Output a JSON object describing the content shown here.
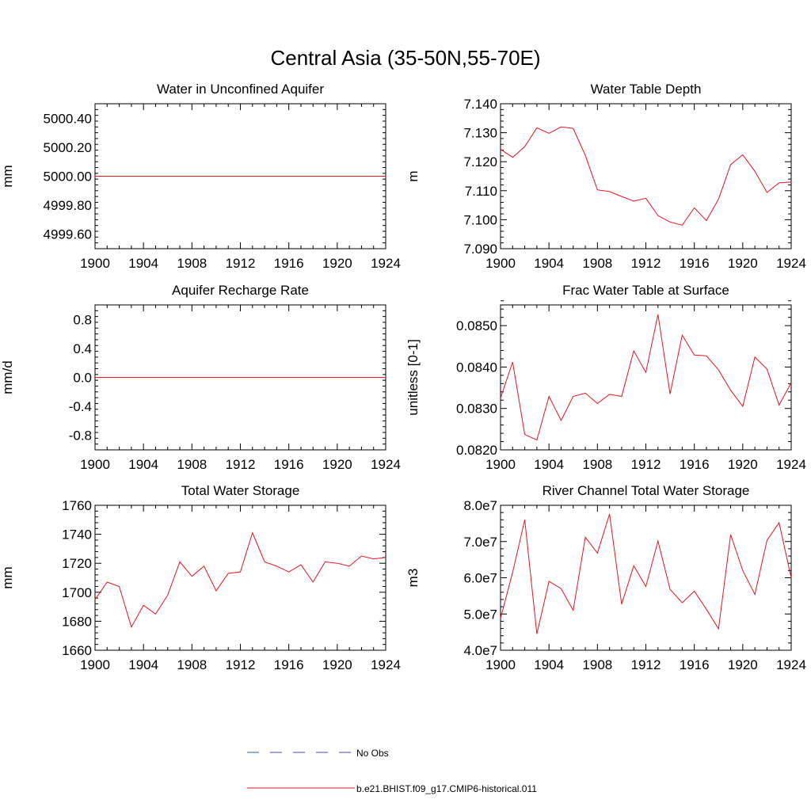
{
  "figure": {
    "title": "Central Asia (35-50N,55-70E)"
  },
  "legend": {
    "entries": [
      {
        "label": "No Obs",
        "style": "dashed",
        "color": "#3b4fd1"
      },
      {
        "label": "b.e21.BHIST.f09_g17.CMIP6-historical.011",
        "style": "solid",
        "color": "#e8141e"
      }
    ]
  },
  "chart_data": [
    {
      "type": "line",
      "title": "Water in Unconfined Aquifer",
      "ylabel": "mm",
      "xlim": [
        1900,
        1924
      ],
      "ylim": [
        4999.5,
        5000.5
      ],
      "xticks": [
        1900,
        1904,
        1908,
        1912,
        1916,
        1920,
        1924
      ],
      "yticks": [
        4999.6,
        4999.8,
        5000.0,
        5000.2,
        5000.4
      ],
      "ytick_labels": [
        "4999.60",
        "4999.80",
        "5000.00",
        "5000.20",
        "5000.40"
      ],
      "series": [
        {
          "name": "b.e21.BHIST.f09_g17.CMIP6-historical.011",
          "color": "#e8141e",
          "x": [
            1900,
            1901,
            1902,
            1903,
            1904,
            1905,
            1906,
            1907,
            1908,
            1909,
            1910,
            1911,
            1912,
            1913,
            1914,
            1915,
            1916,
            1917,
            1918,
            1919,
            1920,
            1921,
            1922,
            1923,
            1924
          ],
          "values": [
            5000,
            5000,
            5000,
            5000,
            5000,
            5000,
            5000,
            5000,
            5000,
            5000,
            5000,
            5000,
            5000,
            5000,
            5000,
            5000,
            5000,
            5000,
            5000,
            5000,
            5000,
            5000,
            5000,
            5000,
            5000
          ]
        }
      ]
    },
    {
      "type": "line",
      "title": "Water Table Depth",
      "ylabel": "m",
      "xlim": [
        1900,
        1924
      ],
      "ylim": [
        7.09,
        7.14
      ],
      "xticks": [
        1900,
        1904,
        1908,
        1912,
        1916,
        1920,
        1924
      ],
      "yticks": [
        7.09,
        7.1,
        7.11,
        7.12,
        7.13,
        7.14
      ],
      "ytick_labels": [
        "7.090",
        "7.100",
        "7.110",
        "7.120",
        "7.130",
        "7.140"
      ],
      "series": [
        {
          "name": "b.e21.BHIST.f09_g17.CMIP6-historical.011",
          "color": "#e8141e",
          "x": [
            1900,
            1901,
            1902,
            1903,
            1904,
            1905,
            1906,
            1907,
            1908,
            1909,
            1910,
            1911,
            1912,
            1913,
            1914,
            1915,
            1916,
            1917,
            1918,
            1919,
            1920,
            1921,
            1922,
            1923,
            1924
          ],
          "values": [
            7.1243,
            7.1215,
            7.1252,
            7.1317,
            7.1298,
            7.132,
            7.1315,
            7.1222,
            7.1103,
            7.1097,
            7.108,
            7.1064,
            7.1074,
            7.1014,
            7.0992,
            7.0981,
            7.1041,
            7.0997,
            7.1071,
            7.119,
            7.1224,
            7.1167,
            7.1094,
            7.1127,
            7.113
          ]
        }
      ]
    },
    {
      "type": "line",
      "title": "Aquifer Recharge Rate",
      "ylabel": "mm/d",
      "xlim": [
        1900,
        1924
      ],
      "ylim": [
        -1.0,
        1.0
      ],
      "xticks": [
        1900,
        1904,
        1908,
        1912,
        1916,
        1920,
        1924
      ],
      "yticks": [
        -0.8,
        -0.4,
        0.0,
        0.4,
        0.8
      ],
      "ytick_labels": [
        "-0.8",
        "-0.4",
        "0.0",
        "0.4",
        "0.8"
      ],
      "series": [
        {
          "name": "b.e21.BHIST.f09_g17.CMIP6-historical.011",
          "color": "#e8141e",
          "x": [
            1900,
            1901,
            1902,
            1903,
            1904,
            1905,
            1906,
            1907,
            1908,
            1909,
            1910,
            1911,
            1912,
            1913,
            1914,
            1915,
            1916,
            1917,
            1918,
            1919,
            1920,
            1921,
            1922,
            1923,
            1924
          ],
          "values": [
            0,
            0,
            0,
            0,
            0,
            0,
            0,
            0,
            0,
            0,
            0,
            0,
            0,
            0,
            0,
            0,
            0,
            0,
            0,
            0,
            0,
            0,
            0,
            0,
            0
          ]
        }
      ]
    },
    {
      "type": "line",
      "title": "Frac Water Table at Surface",
      "ylabel": "unitless [0-1]",
      "xlim": [
        1900,
        1924
      ],
      "ylim": [
        0.082,
        0.0855
      ],
      "xticks": [
        1900,
        1904,
        1908,
        1912,
        1916,
        1920,
        1924
      ],
      "yticks": [
        0.082,
        0.083,
        0.084,
        0.085
      ],
      "ytick_labels": [
        "0.0820",
        "0.0830",
        "0.0840",
        "0.0850"
      ],
      "series": [
        {
          "name": "b.e21.BHIST.f09_g17.CMIP6-historical.011",
          "color": "#e8141e",
          "x": [
            1900,
            1901,
            1902,
            1903,
            1904,
            1905,
            1906,
            1907,
            1908,
            1909,
            1910,
            1911,
            1912,
            1913,
            1914,
            1915,
            1916,
            1917,
            1918,
            1919,
            1920,
            1921,
            1922,
            1923,
            1924
          ],
          "values": [
            0.08325,
            0.08412,
            0.08237,
            0.08224,
            0.08329,
            0.08271,
            0.08329,
            0.08337,
            0.08312,
            0.08334,
            0.08329,
            0.08439,
            0.08387,
            0.08527,
            0.08335,
            0.08477,
            0.08429,
            0.08427,
            0.08393,
            0.08344,
            0.08305,
            0.08424,
            0.08395,
            0.08308,
            0.08362
          ]
        }
      ]
    },
    {
      "type": "line",
      "title": "Total Water Storage",
      "ylabel": "mm",
      "xlim": [
        1900,
        1924
      ],
      "ylim": [
        1660,
        1760
      ],
      "xticks": [
        1900,
        1904,
        1908,
        1912,
        1916,
        1920,
        1924
      ],
      "yticks": [
        1660,
        1680,
        1700,
        1720,
        1740,
        1760
      ],
      "ytick_labels": [
        "1660",
        "1680",
        "1700",
        "1720",
        "1740",
        "1760"
      ],
      "series": [
        {
          "name": "b.e21.BHIST.f09_g17.CMIP6-historical.011",
          "color": "#e8141e",
          "x": [
            1900,
            1901,
            1902,
            1903,
            1904,
            1905,
            1906,
            1907,
            1908,
            1909,
            1910,
            1911,
            1912,
            1913,
            1914,
            1915,
            1916,
            1917,
            1918,
            1919,
            1920,
            1921,
            1922,
            1923,
            1924
          ],
          "values": [
            1695,
            1707,
            1704,
            1676,
            1691,
            1685,
            1698,
            1721,
            1711,
            1718,
            1701,
            1713,
            1714,
            1741,
            1721,
            1718,
            1714,
            1719,
            1707,
            1721,
            1720,
            1718,
            1725,
            1723,
            1724
          ]
        }
      ]
    },
    {
      "type": "line",
      "title": "River Channel Total Water Storage",
      "ylabel": "m3",
      "xlim": [
        1900,
        1924
      ],
      "ylim": [
        40000000,
        80000000
      ],
      "xticks": [
        1900,
        1904,
        1908,
        1912,
        1916,
        1920,
        1924
      ],
      "yticks": [
        40000000,
        50000000,
        60000000,
        70000000,
        80000000
      ],
      "ytick_labels": [
        "4.0e7",
        "5.0e7",
        "6.0e7",
        "7.0e7",
        "8.0e7"
      ],
      "series": [
        {
          "name": "b.e21.BHIST.f09_g17.CMIP6-historical.011",
          "color": "#e8141e",
          "x": [
            1900,
            1901,
            1902,
            1903,
            1904,
            1905,
            1906,
            1907,
            1908,
            1909,
            1910,
            1911,
            1912,
            1913,
            1914,
            1915,
            1916,
            1917,
            1918,
            1919,
            1920,
            1921,
            1922,
            1923,
            1924
          ],
          "values": [
            48800000,
            61500000,
            76000000,
            44500000,
            59000000,
            57000000,
            51000000,
            71200000,
            66800000,
            77600000,
            52700000,
            63300000,
            57600000,
            70100000,
            56800000,
            53100000,
            56300000,
            51300000,
            45900000,
            71900000,
            62000000,
            55400000,
            70300000,
            75200000,
            60000000
          ]
        }
      ]
    }
  ]
}
